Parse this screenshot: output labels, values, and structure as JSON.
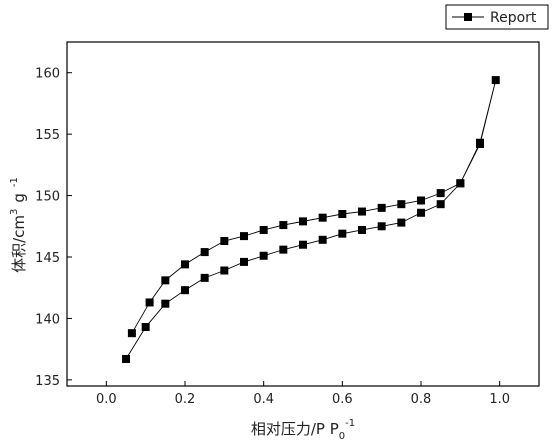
{
  "chart_data": {
    "type": "line",
    "x_axis": {
      "label": "相对压力/P P",
      "label_subscript": "0",
      "label_superscript": "-1",
      "range": [
        -0.1,
        1.1
      ],
      "ticks": [
        0.0,
        0.2,
        0.4,
        0.6,
        0.8,
        1.0
      ],
      "tick_labels": [
        "0.0",
        "0.2",
        "0.4",
        "0.6",
        "0.8",
        "1.0"
      ]
    },
    "y_axis": {
      "label": "体积/cm",
      "label_sup1": "3",
      "label_mid": "g",
      "label_sup2": "-1",
      "range": [
        134.5,
        162.5
      ],
      "ticks": [
        135,
        140,
        145,
        150,
        155,
        160
      ],
      "tick_labels": [
        "135",
        "140",
        "145",
        "150",
        "155",
        "160"
      ]
    },
    "legend": {
      "placement": "top-right",
      "entries": [
        "Report"
      ]
    },
    "grid": false,
    "series": [
      {
        "name": "Report",
        "color": "#000000",
        "marker": "square",
        "x": [
          0.05,
          0.1,
          0.15,
          0.2,
          0.25,
          0.3,
          0.35,
          0.4,
          0.45,
          0.5,
          0.55,
          0.6,
          0.65,
          0.7,
          0.75,
          0.8,
          0.85,
          0.9,
          0.95,
          0.99,
          0.95,
          0.9,
          0.85,
          0.8,
          0.75,
          0.7,
          0.65,
          0.6,
          0.55,
          0.5,
          0.45,
          0.4,
          0.35,
          0.3,
          0.25,
          0.2,
          0.15,
          0.11,
          0.065
        ],
        "y": [
          136.7,
          139.3,
          141.2,
          142.3,
          143.3,
          143.9,
          144.6,
          145.1,
          145.6,
          146.0,
          146.4,
          146.9,
          147.2,
          147.5,
          147.8,
          148.6,
          149.3,
          151.0,
          154.2,
          159.4,
          154.3,
          151.0,
          150.2,
          149.6,
          149.3,
          149.0,
          148.7,
          148.5,
          148.2,
          147.9,
          147.6,
          147.2,
          146.7,
          146.3,
          145.4,
          144.4,
          143.1,
          141.3,
          138.8
        ]
      }
    ]
  }
}
